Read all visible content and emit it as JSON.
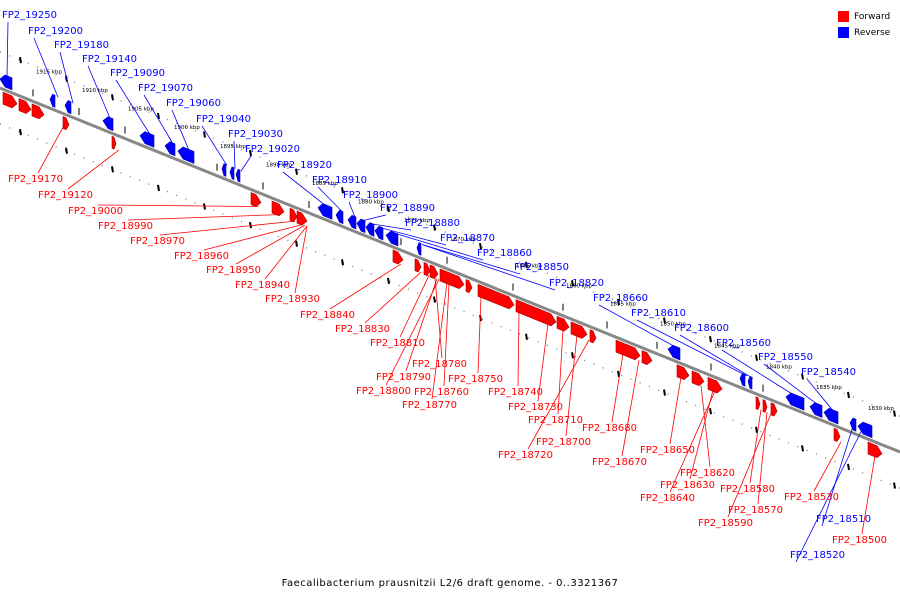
{
  "legend": [
    {
      "label": "Forward",
      "color": "#ff0000"
    },
    {
      "label": "Reverse",
      "color": "#0000ff"
    }
  ],
  "caption": "Faecalibacterium prausnitzii L2/6 draft genome. - 0..3321367",
  "colors": {
    "forward": "#ff0000",
    "reverse": "#0000ff",
    "backbone": "#888888"
  },
  "ticks": [
    "1915 kbp",
    "1910 kbp",
    "1905 kbp",
    "1900 kbp",
    "1895 kbp",
    "1890 kbp",
    "1885 kbp",
    "1880 kbp",
    "1875 kbp",
    "1870 kbp",
    "1865 kbp",
    "1860 kbp",
    "1855 kbp",
    "1850 kbp",
    "1845 kbp",
    "1840 kbp",
    "1835 kbp",
    "1830 kbp"
  ],
  "reverse_labels": [
    "FP2_19250",
    "FP2_19200",
    "FP2_19180",
    "FP2_19140",
    "FP2_19090",
    "FP2_19070",
    "FP2_19060",
    "FP2_19040",
    "FP2_19030",
    "FP2_19020",
    "FP2_18920",
    "FP2_18910",
    "FP2_18900",
    "FP2_18890",
    "FP2_18880",
    "FP2_18870",
    "FP2_18860",
    "FP2_18850",
    "FP2_18820",
    "FP2_18660",
    "FP2_18610",
    "FP2_18600",
    "FP2_18560",
    "FP2_18550",
    "FP2_18540",
    "FP2_18510",
    "FP2_18520"
  ],
  "forward_labels": [
    "FP2_19170",
    "FP2_19120",
    "FP2_19000",
    "FP2_18990",
    "FP2_18970",
    "FP2_18960",
    "FP2_18950",
    "FP2_18940",
    "FP2_18930",
    "FP2_18840",
    "FP2_18830",
    "FP2_18810",
    "FP2_18780",
    "FP2_18790",
    "FP2_18800",
    "FP2_18760",
    "FP2_18770",
    "FP2_18750",
    "FP2_18740",
    "FP2_18730",
    "FP2_18710",
    "FP2_18700",
    "FP2_18720",
    "FP2_18680",
    "FP2_18670",
    "FP2_18650",
    "FP2_18620",
    "FP2_18630",
    "FP2_18640",
    "FP2_18580",
    "FP2_18570",
    "FP2_18590",
    "FP2_18530",
    "FP2_18500"
  ]
}
